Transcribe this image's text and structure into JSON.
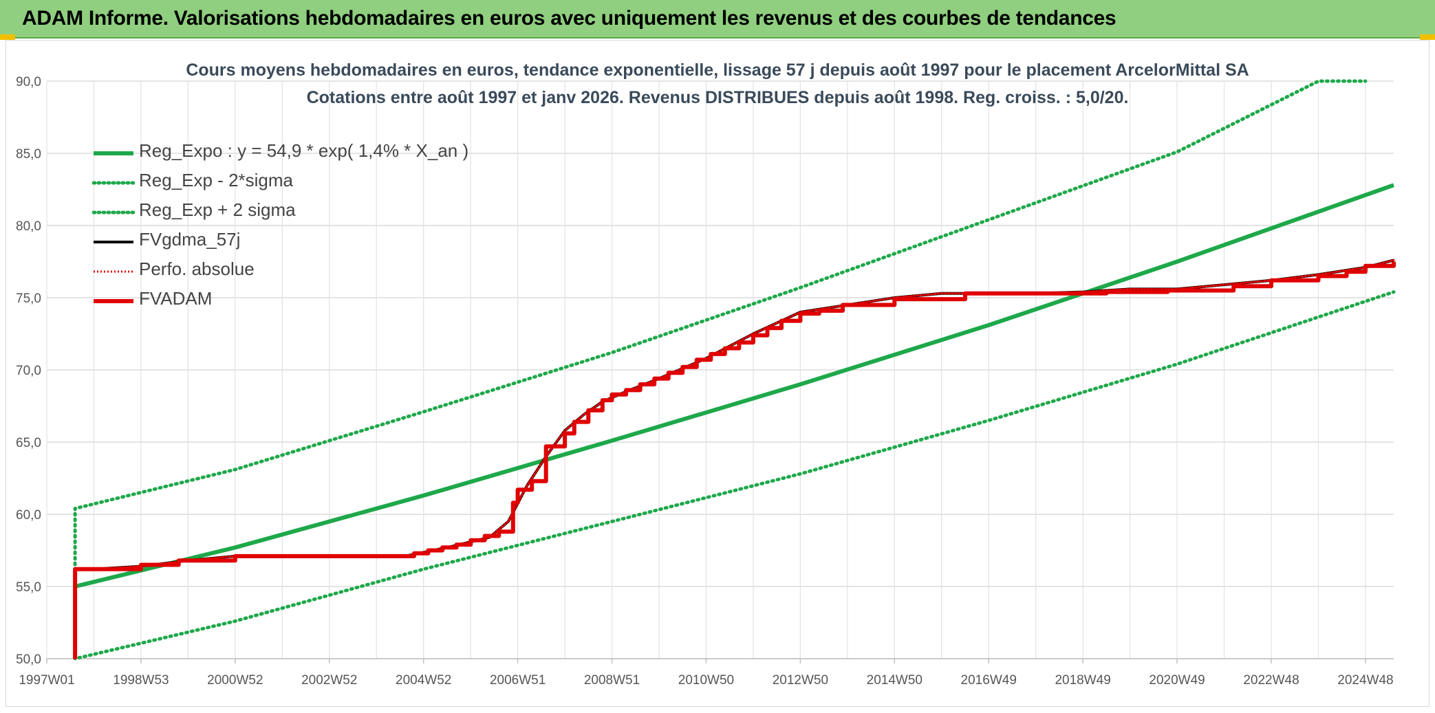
{
  "header": {
    "title": "ADAM Informe. Valorisations hebdomadaires en euros avec uniquement les revenus et des courbes de tendances"
  },
  "chart_data": {
    "type": "line",
    "title": "Cours moyens hebdomadaires en euros, tendance exponentielle, lissage 57 j depuis août 1997 pour le placement ArcelorMittal SA",
    "subtitle": "Cotations entre août 1997 et janv 2026. Revenus DISTRIBUES depuis août 1998. Reg. croiss. : 5,0/20.",
    "xlabel": "",
    "ylabel": "",
    "ylim": [
      50,
      90
    ],
    "xlim": [
      1997.0,
      2025.6
    ],
    "yticks": [
      "50,0",
      "55,0",
      "60,0",
      "65,0",
      "70,0",
      "75,0",
      "80,0",
      "85,0",
      "90,0"
    ],
    "xticks": [
      {
        "label": "1997W01",
        "x": 1997.0
      },
      {
        "label": "1998W53",
        "x": 1999.0
      },
      {
        "label": "2000W52",
        "x": 2001.0
      },
      {
        "label": "2002W52",
        "x": 2003.0
      },
      {
        "label": "2004W52",
        "x": 2005.0
      },
      {
        "label": "2006W51",
        "x": 2007.0
      },
      {
        "label": "2008W51",
        "x": 2009.0
      },
      {
        "label": "2010W50",
        "x": 2011.0
      },
      {
        "label": "2012W50",
        "x": 2013.0
      },
      {
        "label": "2014W50",
        "x": 2015.0
      },
      {
        "label": "2016W49",
        "x": 2017.0
      },
      {
        "label": "2018W49",
        "x": 2019.0
      },
      {
        "label": "2020W49",
        "x": 2021.0
      },
      {
        "label": "2022W48",
        "x": 2023.0
      },
      {
        "label": "2024W48",
        "x": 2025.0
      }
    ],
    "grid": true,
    "legend_position": "top-left",
    "series": [
      {
        "name": "Reg_Expo : y = 54,9 * exp( 1,4% *  X_an )",
        "color": "#1ea84a",
        "style": "solid",
        "width": 6,
        "x": [
          1997.6,
          2001,
          2005,
          2009,
          2013,
          2017,
          2021,
          2025.6
        ],
        "y": [
          55.0,
          57.7,
          61.3,
          65.1,
          69.0,
          73.1,
          77.5,
          82.8
        ]
      },
      {
        "name": "Reg_Exp - 2*sigma",
        "color": "#1ea84a",
        "style": "dotted",
        "width": 5,
        "x": [
          1997.6,
          1997.6,
          2001,
          2005,
          2009,
          2013,
          2017,
          2021,
          2025.6
        ],
        "y": [
          56.2,
          50.0,
          52.6,
          56.2,
          59.5,
          62.8,
          66.5,
          70.4,
          75.4
        ]
      },
      {
        "name": "Reg_Exp + 2 sigma",
        "color": "#1ea84a",
        "style": "dotted",
        "width": 5,
        "x": [
          1997.6,
          1997.6,
          2001,
          2005,
          2009,
          2013,
          2017,
          2021,
          2024.0,
          2025.0
        ],
        "y": [
          55.0,
          60.4,
          63.1,
          67.1,
          71.2,
          75.7,
          80.4,
          85.1,
          90.0,
          90.0
        ]
      },
      {
        "name": "FVgdma_57j",
        "color": "#000000",
        "style": "solid",
        "width": 4,
        "x": [
          1998.0,
          1999.0,
          2000.0,
          2001.0,
          2004.6,
          2005.5,
          2006.4,
          2006.8,
          2007.2,
          2007.6,
          2008.0,
          2008.4,
          2008.8,
          2009.3,
          2010.0,
          2011.0,
          2012.0,
          2013.0,
          2014.0,
          2015.0,
          2016.0,
          2018.0,
          2019.0,
          2020.0,
          2021.0,
          2022.0,
          2023.0,
          2024.0,
          2025.0,
          2025.6
        ],
        "y": [
          56.2,
          56.4,
          56.8,
          57.1,
          57.1,
          57.7,
          58.4,
          59.5,
          62.0,
          64.0,
          65.8,
          66.9,
          67.8,
          68.5,
          69.4,
          70.8,
          72.5,
          74.0,
          74.5,
          75.0,
          75.3,
          75.3,
          75.4,
          75.6,
          75.6,
          75.9,
          76.2,
          76.6,
          77.1,
          77.6
        ]
      },
      {
        "name": "Perfo. absolue",
        "color": "#e00000",
        "style": "dotted",
        "width": 3,
        "x": [
          1997.6,
          1997.6,
          1998.0,
          1999.0,
          2000.0,
          2001.0,
          2004.6,
          2005.5,
          2006.4,
          2006.8,
          2007.2,
          2007.6,
          2008.0,
          2008.4,
          2008.8,
          2009.3,
          2010.0,
          2011.0,
          2012.0,
          2013.0,
          2014.0,
          2015.0,
          2016.0,
          2018.0,
          2019.0,
          2020.0,
          2021.0,
          2022.0,
          2023.0,
          2024.0,
          2025.0,
          2025.6
        ],
        "y": [
          50.0,
          56.2,
          56.2,
          56.4,
          56.8,
          57.1,
          57.1,
          57.7,
          58.4,
          59.5,
          62.0,
          64.0,
          65.8,
          66.9,
          67.8,
          68.5,
          69.4,
          70.8,
          72.5,
          74.0,
          74.5,
          75.0,
          75.3,
          75.3,
          75.4,
          75.6,
          75.6,
          75.9,
          76.2,
          76.6,
          77.1,
          77.6
        ]
      },
      {
        "name": "FVADAM",
        "color": "#e00000",
        "style": "solid",
        "width": 6,
        "step": true,
        "x": [
          1997.6,
          1997.6,
          1999.0,
          1999.8,
          2001.0,
          2004.5,
          2004.8,
          2005.1,
          2005.4,
          2005.7,
          2006.0,
          2006.3,
          2006.6,
          2006.9,
          2007.0,
          2007.3,
          2007.6,
          2008.0,
          2008.2,
          2008.5,
          2008.8,
          2009.0,
          2009.3,
          2009.6,
          2009.9,
          2010.2,
          2010.5,
          2010.8,
          2011.1,
          2011.4,
          2011.7,
          2012.0,
          2012.3,
          2012.6,
          2013.0,
          2013.4,
          2013.9,
          2014.4,
          2015.0,
          2015.6,
          2016.5,
          2018.0,
          2019.5,
          2020.8,
          2021.3,
          2022.2,
          2023.0,
          2024.0,
          2024.6,
          2025.0,
          2025.6
        ],
        "y": [
          50.0,
          56.2,
          56.5,
          56.8,
          57.1,
          57.1,
          57.3,
          57.5,
          57.7,
          57.9,
          58.2,
          58.5,
          58.8,
          60.8,
          61.7,
          62.3,
          64.7,
          65.6,
          66.4,
          67.2,
          67.9,
          68.3,
          68.6,
          69.0,
          69.4,
          69.8,
          70.2,
          70.7,
          71.1,
          71.5,
          71.9,
          72.4,
          72.9,
          73.4,
          73.9,
          74.1,
          74.5,
          74.5,
          74.9,
          74.9,
          75.3,
          75.3,
          75.4,
          75.5,
          75.5,
          75.8,
          76.2,
          76.5,
          76.8,
          77.2,
          77.5
        ]
      }
    ]
  }
}
